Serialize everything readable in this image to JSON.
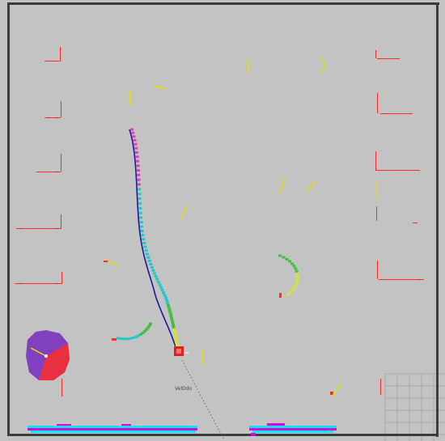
{
  "window": {
    "title": ""
  },
  "map": {
    "background": "#c3c3c3",
    "wall_color": "#3c3c3c",
    "robot": {
      "label": "VelOdo",
      "color": "#e02020"
    },
    "colors": {
      "obstacle_points": "#ff2a2a",
      "yellow_markers": "#e8e000",
      "path_blue": "#1a1aa0",
      "trail_magenta": "#e040b0",
      "trail_cyan": "#20c8c8",
      "trail_green": "#40c040",
      "trail_yellow": "#d8e040",
      "costmap_magenta": "#e000e0",
      "costmap_cyan": "#00e8f0",
      "costmap_purple": "#8040c0",
      "costmap_red": "#e83040",
      "grid_lines": "#a8a8a8"
    }
  }
}
